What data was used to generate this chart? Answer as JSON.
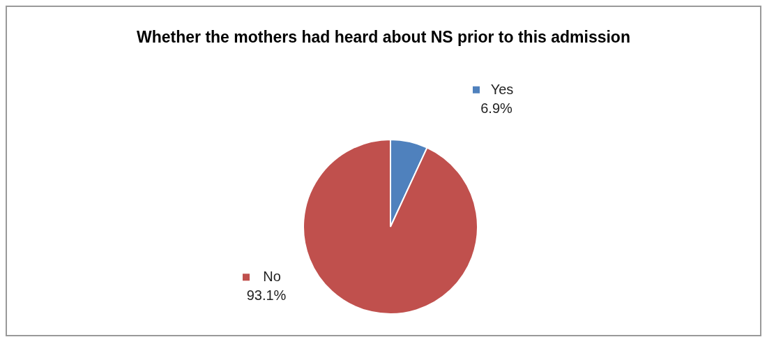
{
  "chart_data": {
    "type": "pie",
    "title": "Whether the mothers had heard about NS prior to this admission",
    "categories": [
      "Yes",
      "No"
    ],
    "values": [
      6.9,
      93.1
    ],
    "colors": [
      "#4f81bd",
      "#c0504d"
    ],
    "value_labels": [
      "6.9%",
      "93.1%"
    ],
    "legend": "top left"
  }
}
